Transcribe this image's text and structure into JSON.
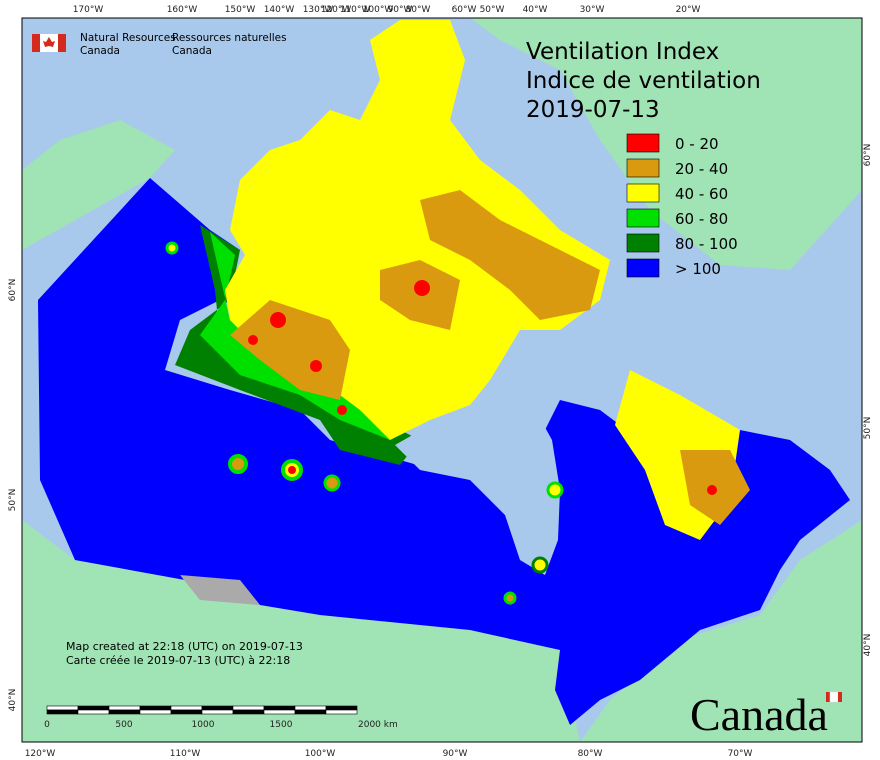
{
  "agency_en": [
    "Natural Resources",
    "Canada"
  ],
  "agency_fr": [
    "Ressources naturelles",
    "Canada"
  ],
  "title": [
    "Ventilation Index",
    "Indice de ventilation",
    "2019-07-13"
  ],
  "legend": [
    {
      "label": "0 - 20",
      "color": "#ff0000"
    },
    {
      "label": "20 - 40",
      "color": "#d99a10"
    },
    {
      "label": "40 - 60",
      "color": "#ffff00"
    },
    {
      "label": "60 - 80",
      "color": "#00e000"
    },
    {
      "label": "80 - 100",
      "color": "#008000"
    },
    {
      "label": "> 100",
      "color": "#0000ff"
    }
  ],
  "credits": [
    "Map created at 22:18 (UTC) on 2019-07-13",
    "Carte créée le 2019-07-13 (UTC) à 22:18"
  ],
  "scale_labels": [
    "0",
    "500",
    "1000",
    "1500",
    "2000 km"
  ],
  "wordmark": "Canada",
  "graticule": {
    "top": [
      "170°W",
      "160°W",
      "150°W",
      "140°W",
      "130°W",
      "120°W",
      "110°W",
      "100°W",
      "90°W",
      "80°W",
      "60°W",
      "50°W",
      "40°W",
      "30°W",
      "20°W"
    ],
    "bottom": [
      "120°W",
      "110°W",
      "100°W",
      "90°W",
      "80°W",
      "70°W"
    ],
    "left": [
      "60°N",
      "50°N",
      "40°N"
    ],
    "right": [
      "60°N",
      "50°N",
      "40°N"
    ]
  }
}
